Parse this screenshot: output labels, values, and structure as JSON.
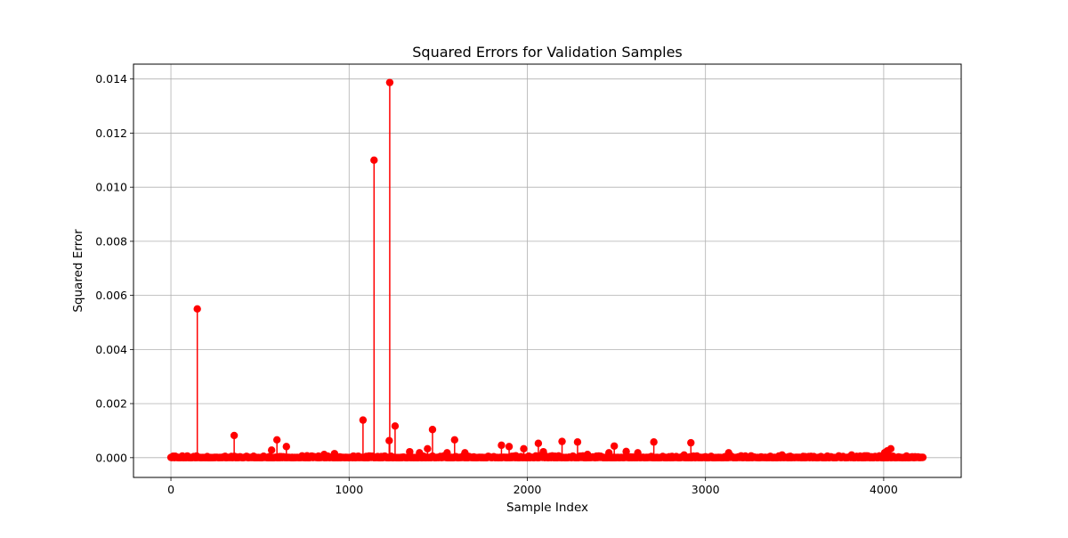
{
  "chart_data": {
    "type": "scatter",
    "subtype": "stem",
    "title": "Squared Errors for Validation Samples",
    "xlabel": "Sample Index",
    "ylabel": "Squared Error",
    "xlim": [
      -210,
      4435
    ],
    "ylim": [
      -0.00073,
      0.01455
    ],
    "xticks": [
      0,
      1000,
      2000,
      3000,
      4000
    ],
    "xtick_labels": [
      "0",
      "1000",
      "2000",
      "3000",
      "4000"
    ],
    "yticks": [
      0.0,
      0.002,
      0.004,
      0.006,
      0.008,
      0.01,
      0.012,
      0.014
    ],
    "ytick_labels": [
      "0.000",
      "0.002",
      "0.004",
      "0.006",
      "0.008",
      "0.010",
      "0.012",
      "0.014"
    ],
    "grid": true,
    "color": "#ff0000",
    "n_samples": 4224,
    "baseline": 0,
    "series": [
      {
        "x": [
          148,
          355,
          565,
          595,
          648,
          860,
          918,
          1078,
          1140,
          1225,
          1228,
          1258,
          1340,
          1395,
          1440,
          1468,
          1550,
          1592,
          1650,
          1855,
          1898,
          1980,
          2062,
          2090,
          2195,
          2282,
          2338,
          2458,
          2488,
          2555,
          2620,
          2710,
          2880,
          2918,
          3130,
          3430,
          3820,
          4005,
          4020,
          4040
        ],
        "values": [
          0.0055,
          0.00082,
          0.00028,
          0.00066,
          0.00041,
          0.00012,
          0.00015,
          0.00139,
          0.011,
          0.00063,
          0.01387,
          0.00117,
          0.00022,
          0.00018,
          0.00033,
          0.00104,
          0.00018,
          0.00066,
          0.00018,
          0.00046,
          0.00041,
          0.00033,
          0.00053,
          0.00022,
          0.0006,
          0.00058,
          0.00012,
          0.00018,
          0.00043,
          0.00023,
          0.00018,
          0.00058,
          0.0001,
          0.00055,
          0.00018,
          0.0001,
          0.0001,
          0.00018,
          0.00025,
          0.00033
        ]
      }
    ]
  }
}
